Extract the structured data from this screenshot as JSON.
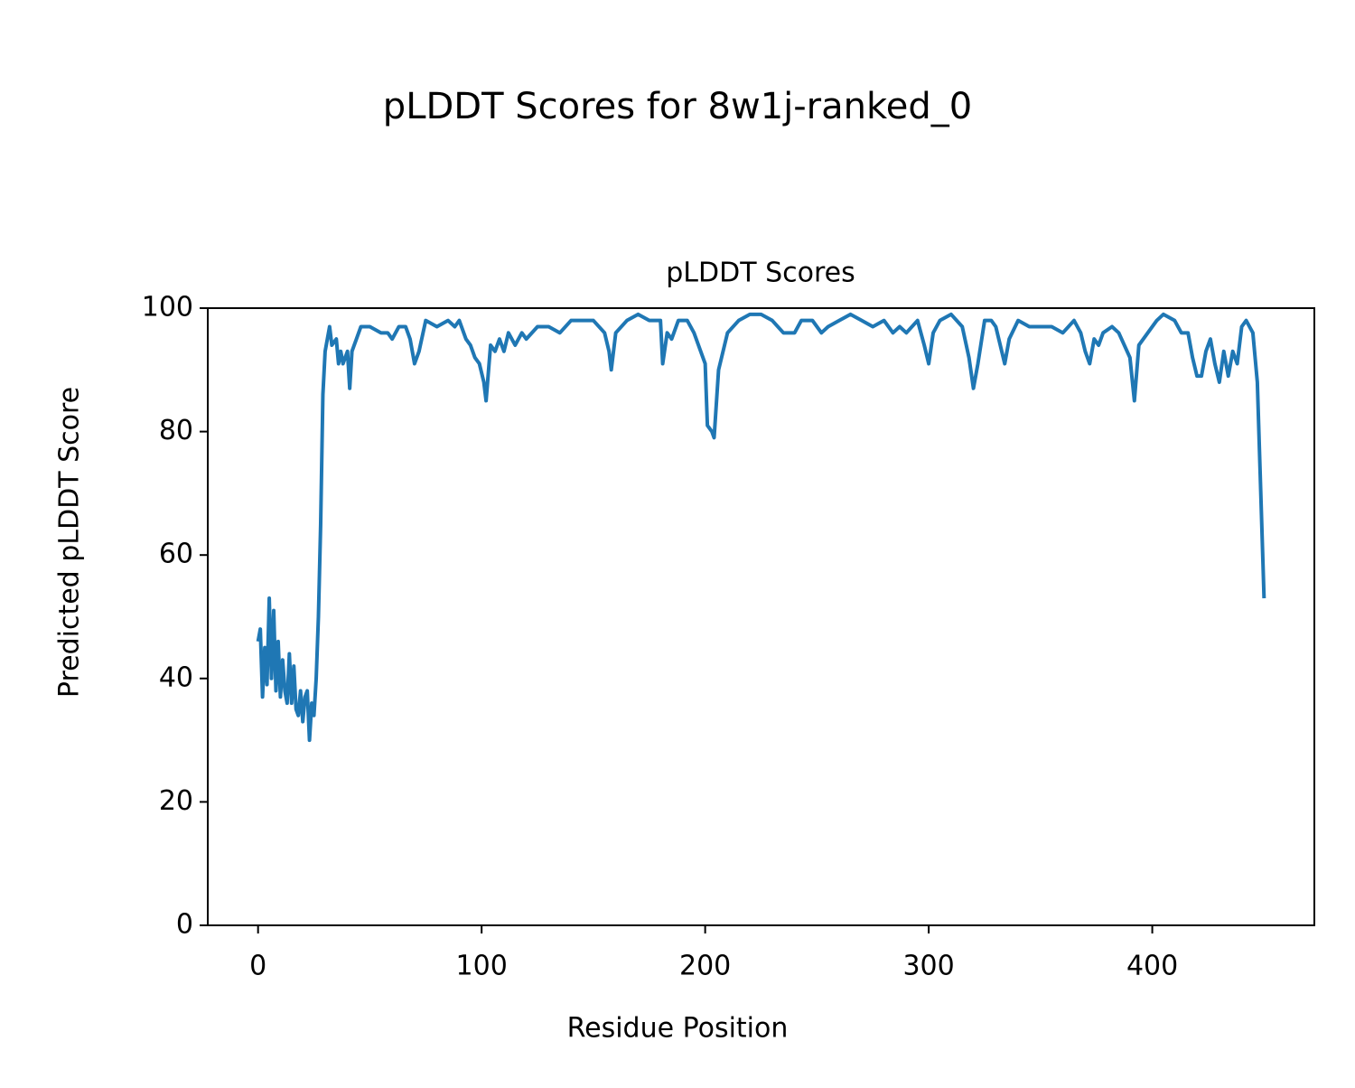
{
  "chart_data": {
    "type": "line",
    "title": "pLDDT Scores for 8w1j-ranked_0",
    "subtitle": "pLDDT Scores",
    "x_label": "Residue Position",
    "y_label": "Predicted pLDDT Score",
    "color": "#1f77b4",
    "x": [
      0,
      1,
      2,
      3,
      4,
      5,
      6,
      7,
      8,
      9,
      10,
      11,
      12,
      13,
      14,
      15,
      16,
      17,
      18,
      19,
      20,
      21,
      22,
      23,
      24,
      25,
      26,
      27,
      28,
      29,
      30,
      31,
      32,
      33,
      35,
      36,
      37,
      38,
      40,
      41,
      42,
      44,
      46,
      50,
      55,
      58,
      60,
      63,
      66,
      68,
      70,
      72,
      75,
      80,
      85,
      88,
      90,
      93,
      95,
      97,
      99,
      101,
      102,
      104,
      106,
      108,
      110,
      112,
      115,
      118,
      120,
      125,
      130,
      135,
      140,
      145,
      150,
      155,
      157,
      158,
      160,
      165,
      170,
      175,
      180,
      181,
      183,
      185,
      188,
      192,
      195,
      198,
      200,
      201,
      203,
      204,
      206,
      210,
      215,
      220,
      225,
      230,
      235,
      240,
      243,
      248,
      252,
      255,
      260,
      265,
      270,
      275,
      280,
      284,
      287,
      290,
      295,
      298,
      300,
      302,
      305,
      310,
      315,
      318,
      320,
      322,
      325,
      328,
      330,
      332,
      334,
      336,
      340,
      345,
      350,
      355,
      360,
      365,
      368,
      370,
      372,
      374,
      376,
      378,
      382,
      385,
      390,
      392,
      394,
      398,
      402,
      405,
      410,
      413,
      416,
      418,
      420,
      422,
      424,
      426,
      428,
      430,
      432,
      434,
      436,
      438,
      440,
      442,
      445,
      447,
      450
    ],
    "values": [
      46,
      48,
      37,
      45,
      39,
      53,
      40,
      51,
      38,
      46,
      37,
      43,
      38,
      36,
      44,
      36,
      42,
      35,
      34,
      38,
      33,
      37,
      38,
      30,
      36,
      34,
      40,
      50,
      65,
      86,
      93,
      95,
      97,
      94,
      95,
      91,
      93,
      91,
      93,
      87,
      93,
      95,
      97,
      97,
      96,
      96,
      95,
      97,
      97,
      95,
      91,
      93,
      98,
      97,
      98,
      97,
      98,
      95,
      94,
      92,
      91,
      88,
      85,
      94,
      93,
      95,
      93,
      96,
      94,
      96,
      95,
      97,
      97,
      96,
      98,
      98,
      98,
      96,
      93,
      90,
      96,
      98,
      99,
      98,
      98,
      91,
      96,
      95,
      98,
      98,
      96,
      93,
      91,
      81,
      80,
      79,
      90,
      96,
      98,
      99,
      99,
      98,
      96,
      96,
      98,
      98,
      96,
      97,
      98,
      99,
      98,
      97,
      98,
      96,
      97,
      96,
      98,
      94,
      91,
      96,
      98,
      99,
      97,
      92,
      87,
      91,
      98,
      98,
      97,
      94,
      91,
      95,
      98,
      97,
      97,
      97,
      96,
      98,
      96,
      93,
      91,
      95,
      94,
      96,
      97,
      96,
      92,
      85,
      94,
      96,
      98,
      99,
      98,
      96,
      96,
      92,
      89,
      89,
      93,
      95,
      91,
      88,
      93,
      89,
      93,
      91,
      97,
      98,
      96,
      88,
      53
    ],
    "xlim": [
      -22.5,
      472.5
    ],
    "ylim": [
      0,
      100
    ],
    "xticks": [
      0,
      100,
      200,
      300,
      400
    ],
    "yticks": [
      0,
      20,
      40,
      60,
      80,
      100
    ]
  }
}
